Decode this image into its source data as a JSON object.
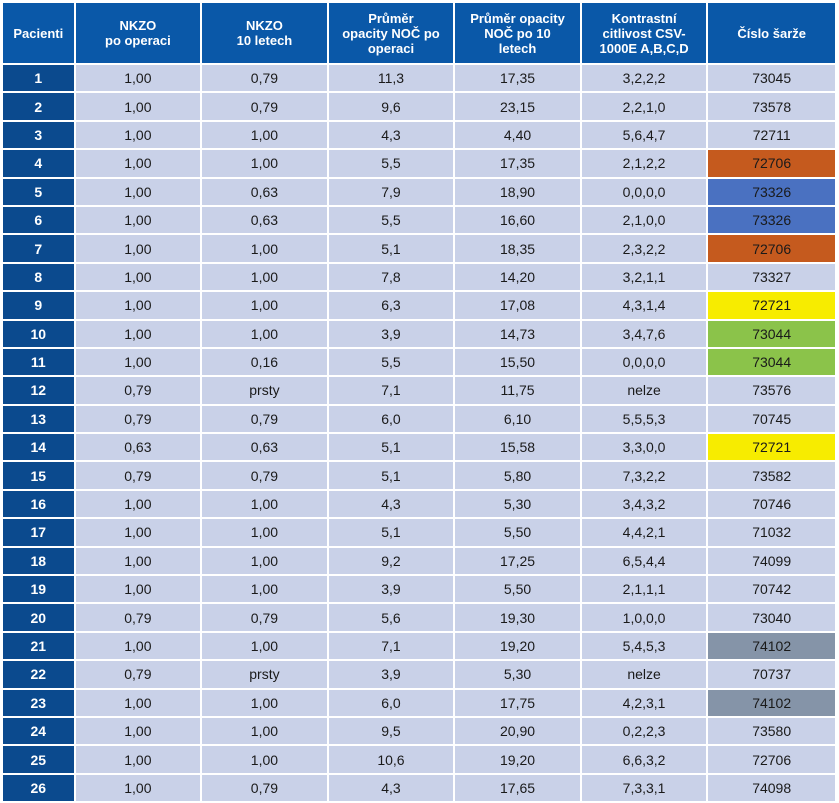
{
  "table": {
    "headers": [
      "Pacienti",
      "NKZO\npo operaci",
      "NKZO\n10 letech",
      "Průměr\nopacity NOČ po\noperaci",
      "Průměr opacity\nNOČ po 10\nletech",
      "Kontrastní\ncitlivost CSV-\n1000E A,B,C,D",
      "Číslo šarže"
    ],
    "highlight_colors": {
      "orange": "#c55a1e",
      "blue": "#4a71c1",
      "yellow": "#f7ec00",
      "green": "#8bc34a",
      "gray": "#8594a8"
    },
    "rows": [
      {
        "patient": "1",
        "nkzo_after": "1,00",
        "nkzo_10y": "0,79",
        "opacity_after": "11,3",
        "opacity_10y": "17,35",
        "contrast": "3,2,2,2",
        "batch": "73045",
        "highlight": ""
      },
      {
        "patient": "2",
        "nkzo_after": "1,00",
        "nkzo_10y": "0,79",
        "opacity_after": "9,6",
        "opacity_10y": "23,15",
        "contrast": "2,2,1,0",
        "batch": "73578",
        "highlight": ""
      },
      {
        "patient": "3",
        "nkzo_after": "1,00",
        "nkzo_10y": "1,00",
        "opacity_after": "4,3",
        "opacity_10y": "4,40",
        "contrast": "5,6,4,7",
        "batch": "72711",
        "highlight": ""
      },
      {
        "patient": "4",
        "nkzo_after": "1,00",
        "nkzo_10y": "1,00",
        "opacity_after": "5,5",
        "opacity_10y": "17,35",
        "contrast": "2,1,2,2",
        "batch": "72706",
        "highlight": "orange"
      },
      {
        "patient": "5",
        "nkzo_after": "1,00",
        "nkzo_10y": "0,63",
        "opacity_after": "7,9",
        "opacity_10y": "18,90",
        "contrast": "0,0,0,0",
        "batch": "73326",
        "highlight": "blue"
      },
      {
        "patient": "6",
        "nkzo_after": "1,00",
        "nkzo_10y": "0,63",
        "opacity_after": "5,5",
        "opacity_10y": "16,60",
        "contrast": "2,1,0,0",
        "batch": "73326",
        "highlight": "blue"
      },
      {
        "patient": "7",
        "nkzo_after": "1,00",
        "nkzo_10y": "1,00",
        "opacity_after": "5,1",
        "opacity_10y": "18,35",
        "contrast": "2,3,2,2",
        "batch": "72706",
        "highlight": "orange"
      },
      {
        "patient": "8",
        "nkzo_after": "1,00",
        "nkzo_10y": "1,00",
        "opacity_after": "7,8",
        "opacity_10y": "14,20",
        "contrast": "3,2,1,1",
        "batch": "73327",
        "highlight": ""
      },
      {
        "patient": "9",
        "nkzo_after": "1,00",
        "nkzo_10y": "1,00",
        "opacity_after": "6,3",
        "opacity_10y": "17,08",
        "contrast": "4,3,1,4",
        "batch": "72721",
        "highlight": "yellow"
      },
      {
        "patient": "10",
        "nkzo_after": "1,00",
        "nkzo_10y": "1,00",
        "opacity_after": "3,9",
        "opacity_10y": "14,73",
        "contrast": "3,4,7,6",
        "batch": "73044",
        "highlight": "green"
      },
      {
        "patient": "11",
        "nkzo_after": "1,00",
        "nkzo_10y": "0,16",
        "opacity_after": "5,5",
        "opacity_10y": "15,50",
        "contrast": "0,0,0,0",
        "batch": "73044",
        "highlight": "green"
      },
      {
        "patient": "12",
        "nkzo_after": "0,79",
        "nkzo_10y": "prsty",
        "opacity_after": "7,1",
        "opacity_10y": "11,75",
        "contrast": "nelze",
        "batch": "73576",
        "highlight": ""
      },
      {
        "patient": "13",
        "nkzo_after": "0,79",
        "nkzo_10y": "0,79",
        "opacity_after": "6,0",
        "opacity_10y": "6,10",
        "contrast": "5,5,5,3",
        "batch": "70745",
        "highlight": ""
      },
      {
        "patient": "14",
        "nkzo_after": "0,63",
        "nkzo_10y": "0,63",
        "opacity_after": "5,1",
        "opacity_10y": "15,58",
        "contrast": "3,3,0,0",
        "batch": "72721",
        "highlight": "yellow"
      },
      {
        "patient": "15",
        "nkzo_after": "0,79",
        "nkzo_10y": "0,79",
        "opacity_after": "5,1",
        "opacity_10y": "5,80",
        "contrast": "7,3,2,2",
        "batch": "73582",
        "highlight": ""
      },
      {
        "patient": "16",
        "nkzo_after": "1,00",
        "nkzo_10y": "1,00",
        "opacity_after": "4,3",
        "opacity_10y": "5,30",
        "contrast": "3,4,3,2",
        "batch": "70746",
        "highlight": ""
      },
      {
        "patient": "17",
        "nkzo_after": "1,00",
        "nkzo_10y": "1,00",
        "opacity_after": "5,1",
        "opacity_10y": "5,50",
        "contrast": "4,4,2,1",
        "batch": "71032",
        "highlight": ""
      },
      {
        "patient": "18",
        "nkzo_after": "1,00",
        "nkzo_10y": "1,00",
        "opacity_after": "9,2",
        "opacity_10y": "17,25",
        "contrast": "6,5,4,4",
        "batch": "74099",
        "highlight": ""
      },
      {
        "patient": "19",
        "nkzo_after": "1,00",
        "nkzo_10y": "1,00",
        "opacity_after": "3,9",
        "opacity_10y": "5,50",
        "contrast": "2,1,1,1",
        "batch": "70742",
        "highlight": ""
      },
      {
        "patient": "20",
        "nkzo_after": "0,79",
        "nkzo_10y": "0,79",
        "opacity_after": "5,6",
        "opacity_10y": "19,30",
        "contrast": "1,0,0,0",
        "batch": "73040",
        "highlight": ""
      },
      {
        "patient": "21",
        "nkzo_after": "1,00",
        "nkzo_10y": "1,00",
        "opacity_after": "7,1",
        "opacity_10y": "19,20",
        "contrast": "5,4,5,3",
        "batch": "74102",
        "highlight": "gray"
      },
      {
        "patient": "22",
        "nkzo_after": "0,79",
        "nkzo_10y": "prsty",
        "opacity_after": "3,9",
        "opacity_10y": "5,30",
        "contrast": "nelze",
        "batch": "70737",
        "highlight": ""
      },
      {
        "patient": "23",
        "nkzo_after": "1,00",
        "nkzo_10y": "1,00",
        "opacity_after": "6,0",
        "opacity_10y": "17,75",
        "contrast": "4,2,3,1",
        "batch": "74102",
        "highlight": "gray"
      },
      {
        "patient": "24",
        "nkzo_after": "1,00",
        "nkzo_10y": "1,00",
        "opacity_after": "9,5",
        "opacity_10y": "20,90",
        "contrast": "0,2,2,3",
        "batch": "73580",
        "highlight": ""
      },
      {
        "patient": "25",
        "nkzo_after": "1,00",
        "nkzo_10y": "1,00",
        "opacity_after": "10,6",
        "opacity_10y": "19,20",
        "contrast": "6,6,3,2",
        "batch": "72706",
        "highlight": ""
      },
      {
        "patient": "26",
        "nkzo_after": "1,00",
        "nkzo_10y": "0,79",
        "opacity_after": "4,3",
        "opacity_10y": "17,65",
        "contrast": "7,3,3,1",
        "batch": "74098",
        "highlight": ""
      }
    ]
  }
}
